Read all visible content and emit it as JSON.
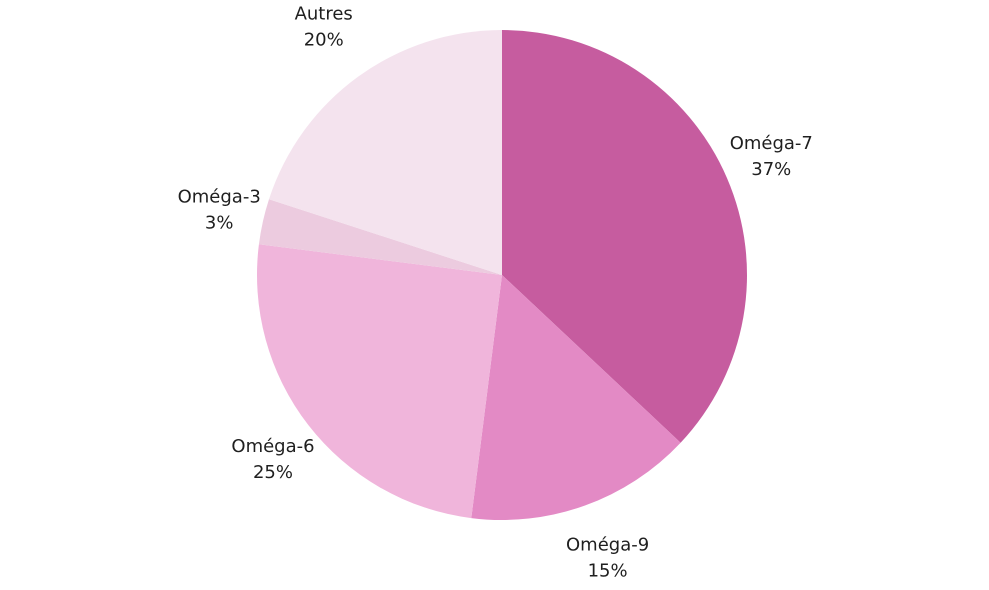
{
  "chart_data": {
    "type": "pie",
    "title": "",
    "start_angle_deg": 0,
    "direction": "clockwise",
    "slices": [
      {
        "name": "Oméga-7",
        "value": 37,
        "label": "37%",
        "color": "#C65C9F"
      },
      {
        "name": "Oméga-9",
        "value": 15,
        "label": "15%",
        "color": "#E38AC5"
      },
      {
        "name": "Oméga-6",
        "value": 25,
        "label": "25%",
        "color": "#F0B5DB"
      },
      {
        "name": "Oméga-3",
        "value": 3,
        "label": "3%",
        "color": "#ECCBDF"
      },
      {
        "name": "Autres",
        "value": 20,
        "label": "20%",
        "color": "#F4E3EE"
      }
    ]
  }
}
